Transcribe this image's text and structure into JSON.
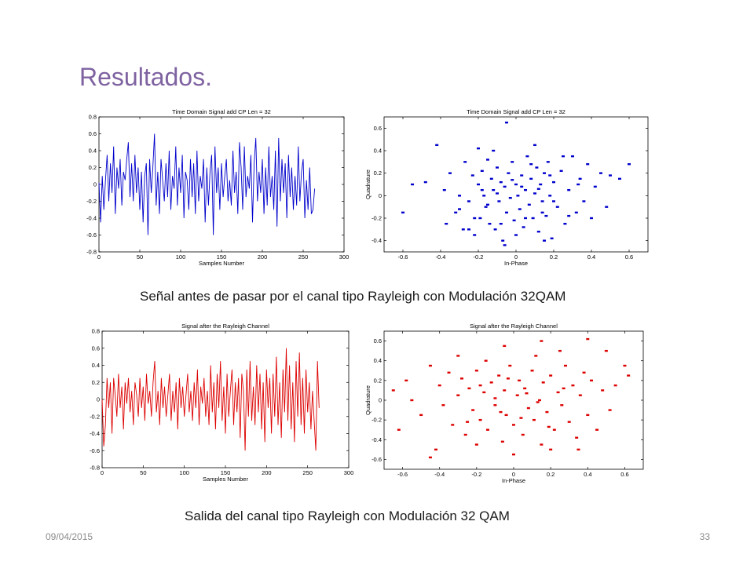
{
  "slide": {
    "title": "Resultados.",
    "caption_top": "Señal antes de pasar por el canal tipo Rayleigh con Modulación 32QAM",
    "caption_bottom": "Salida del canal tipo Rayleigh con Modulación 32 QAM",
    "date": "09/04/2015",
    "page_number": "33"
  },
  "chart_data": [
    {
      "id": "chart-time-before",
      "type": "line",
      "title": "Time Domain Signal add CP Len = 32",
      "xlabel": "Samples Number",
      "ylabel": "",
      "xlim": [
        0,
        300
      ],
      "ylim": [
        -0.8,
        0.8
      ],
      "xticks": [
        0,
        50,
        100,
        150,
        200,
        250,
        300
      ],
      "yticks": [
        -0.8,
        -0.6,
        -0.4,
        -0.2,
        0,
        0.2,
        0.4,
        0.6,
        0.8
      ],
      "color": "#0000cc",
      "grid": false,
      "x": [
        0,
        2,
        4,
        6,
        8,
        10,
        12,
        14,
        16,
        18,
        20,
        22,
        24,
        26,
        28,
        30,
        32,
        34,
        36,
        38,
        40,
        42,
        44,
        46,
        48,
        50,
        52,
        54,
        56,
        58,
        60,
        62,
        64,
        66,
        68,
        70,
        72,
        74,
        76,
        78,
        80,
        82,
        84,
        86,
        88,
        90,
        92,
        94,
        96,
        98,
        100,
        102,
        104,
        106,
        108,
        110,
        112,
        114,
        116,
        118,
        120,
        122,
        124,
        126,
        128,
        130,
        132,
        134,
        136,
        138,
        140,
        142,
        144,
        146,
        148,
        150,
        152,
        154,
        156,
        158,
        160,
        162,
        164,
        166,
        168,
        170,
        172,
        174,
        176,
        178,
        180,
        182,
        184,
        186,
        188,
        190,
        192,
        194,
        196,
        198,
        200,
        202,
        204,
        206,
        208,
        210,
        212,
        214,
        216,
        218,
        220,
        222,
        224,
        226,
        228,
        230,
        232,
        234,
        236,
        238,
        240,
        242,
        244,
        246,
        248,
        250,
        252,
        254,
        256,
        258,
        260,
        262,
        264
      ],
      "values": [
        0.02,
        -0.45,
        0.1,
        -0.3,
        0.05,
        0.35,
        -0.2,
        0.25,
        -0.1,
        0.45,
        -0.35,
        0.2,
        -0.05,
        0.3,
        -0.25,
        0.15,
        0.05,
        0.3,
        0.5,
        -0.15,
        0.25,
        -0.2,
        0.35,
        -0.1,
        0.2,
        -0.3,
        0.15,
        -0.45,
        0.1,
        0.25,
        -0.6,
        0.3,
        -0.1,
        0.2,
        0.6,
        -0.25,
        0.15,
        -0.35,
        0.3,
        0.05,
        -0.2,
        0.25,
        -0.15,
        0.4,
        -0.3,
        0.1,
        -0.05,
        0.45,
        -0.25,
        0.2,
        -0.1,
        0.35,
        -0.4,
        0.15,
        0.05,
        -0.3,
        0.3,
        -0.15,
        0.25,
        -0.35,
        0.4,
        -0.2,
        0.1,
        -0.05,
        0.3,
        -0.45,
        0.2,
        -0.25,
        0.15,
        0.35,
        -0.6,
        0.45,
        -0.1,
        0.2,
        -0.3,
        0.25,
        -0.15,
        0.1,
        0.3,
        -0.2,
        0.05,
        -0.25,
        0.4,
        -0.1,
        0.15,
        -0.35,
        0.5,
        0.2,
        -0.3,
        0.45,
        -0.15,
        0.1,
        -0.05,
        0.35,
        -0.45,
        0.25,
        0.55,
        -0.2,
        0.15,
        -0.1,
        0.3,
        -0.35,
        0.2,
        -0.25,
        0.45,
        -0.15,
        0.1,
        -0.3,
        0.4,
        -0.5,
        0.55,
        -0.2,
        0.3,
        -0.1,
        0.25,
        -0.4,
        0.35,
        -0.15,
        0.2,
        -0.3,
        0.1,
        -0.25,
        0.45,
        -0.2,
        0.15,
        0.3,
        -0.4,
        0.05,
        -0.3,
        0.2,
        -0.35,
        -0.3,
        -0.05
      ]
    },
    {
      "id": "chart-scatter-before",
      "type": "scatter",
      "title": "Time Domain Signal add CP Len = 32",
      "xlabel": "In-Phase",
      "ylabel": "Quadrature",
      "xlim": [
        -0.7,
        0.7
      ],
      "ylim": [
        -0.5,
        0.7
      ],
      "xticks": [
        -0.6,
        -0.4,
        -0.2,
        0,
        0.2,
        0.4,
        0.6
      ],
      "yticks": [
        -0.4,
        -0.2,
        0,
        0.2,
        0.4,
        0.6
      ],
      "color": "#0000cc",
      "grid": false,
      "points": [
        [
          -0.6,
          -0.15
        ],
        [
          -0.55,
          0.1
        ],
        [
          -0.48,
          0.12
        ],
        [
          -0.42,
          0.45
        ],
        [
          -0.38,
          0.05
        ],
        [
          -0.37,
          -0.25
        ],
        [
          -0.35,
          0.2
        ],
        [
          -0.32,
          -0.15
        ],
        [
          -0.3,
          0.0
        ],
        [
          -0.28,
          -0.3
        ],
        [
          -0.27,
          0.3
        ],
        [
          -0.25,
          -0.05
        ],
        [
          -0.23,
          0.18
        ],
        [
          -0.22,
          -0.35
        ],
        [
          -0.2,
          0.1
        ],
        [
          -0.19,
          -0.2
        ],
        [
          -0.18,
          0.22
        ],
        [
          -0.17,
          0.0
        ],
        [
          -0.16,
          -0.1
        ],
        [
          -0.15,
          0.32
        ],
        [
          -0.14,
          -0.25
        ],
        [
          -0.13,
          0.15
        ],
        [
          -0.12,
          0.05
        ],
        [
          -0.11,
          -0.3
        ],
        [
          -0.1,
          0.25
        ],
        [
          -0.09,
          -0.05
        ],
        [
          -0.08,
          0.12
        ],
        [
          -0.07,
          -0.4
        ],
        [
          -0.06,
          0.08
        ],
        [
          -0.05,
          -0.15
        ],
        [
          -0.04,
          0.2
        ],
        [
          -0.03,
          -0.02
        ],
        [
          -0.02,
          0.3
        ],
        [
          -0.01,
          -0.22
        ],
        [
          0.0,
          0.1
        ],
        [
          0.01,
          0.0
        ],
        [
          0.02,
          -0.12
        ],
        [
          0.03,
          0.18
        ],
        [
          0.04,
          -0.28
        ],
        [
          0.05,
          0.05
        ],
        [
          0.06,
          0.35
        ],
        [
          0.07,
          -0.08
        ],
        [
          0.08,
          0.15
        ],
        [
          0.09,
          -0.2
        ],
        [
          0.1,
          0.02
        ],
        [
          0.11,
          0.25
        ],
        [
          0.12,
          -0.32
        ],
        [
          0.13,
          0.1
        ],
        [
          0.14,
          -0.05
        ],
        [
          0.15,
          0.2
        ],
        [
          0.16,
          -0.18
        ],
        [
          0.17,
          0.3
        ],
        [
          0.18,
          0.0
        ],
        [
          0.19,
          -0.38
        ],
        [
          0.2,
          0.12
        ],
        [
          0.22,
          -0.1
        ],
        [
          0.24,
          0.22
        ],
        [
          0.26,
          -0.25
        ],
        [
          0.28,
          0.05
        ],
        [
          0.3,
          0.35
        ],
        [
          0.32,
          -0.15
        ],
        [
          0.34,
          0.15
        ],
        [
          0.36,
          -0.05
        ],
        [
          0.38,
          0.28
        ],
        [
          0.4,
          -0.2
        ],
        [
          0.42,
          0.08
        ],
        [
          0.45,
          0.2
        ],
        [
          0.48,
          -0.1
        ],
        [
          0.5,
          0.18
        ],
        [
          0.55,
          0.15
        ],
        [
          0.6,
          0.28
        ],
        [
          -0.05,
          0.65
        ],
        [
          -0.2,
          0.42
        ],
        [
          0.1,
          0.45
        ],
        [
          -0.25,
          -0.3
        ],
        [
          -0.06,
          -0.44
        ],
        [
          0.15,
          -0.4
        ],
        [
          0.0,
          -0.35
        ],
        [
          -0.12,
          0.4
        ],
        [
          0.25,
          0.35
        ],
        [
          -0.3,
          -0.12
        ],
        [
          0.05,
          -0.2
        ],
        [
          -0.15,
          -0.08
        ],
        [
          0.12,
          0.06
        ],
        [
          -0.02,
          0.14
        ],
        [
          0.2,
          -0.05
        ],
        [
          -0.08,
          -0.25
        ],
        [
          0.08,
          0.28
        ],
        [
          -0.18,
          0.05
        ],
        [
          0.28,
          -0.18
        ],
        [
          0.33,
          0.1
        ],
        [
          -0.22,
          -0.2
        ],
        [
          0.18,
          0.18
        ],
        [
          -0.1,
          0.02
        ],
        [
          0.03,
          0.08
        ],
        [
          0.14,
          -0.15
        ]
      ]
    },
    {
      "id": "chart-time-after",
      "type": "line",
      "title": "Signal after the Rayleigh Channel",
      "xlabel": "Samples Number",
      "ylabel": "",
      "xlim": [
        0,
        300
      ],
      "ylim": [
        -0.8,
        0.8
      ],
      "xticks": [
        0,
        50,
        100,
        150,
        200,
        250,
        300
      ],
      "yticks": [
        -0.8,
        -0.6,
        -0.4,
        -0.2,
        0,
        0.2,
        0.4,
        0.6,
        0.8
      ],
      "color": "#dd0000",
      "grid": false,
      "x": [
        0,
        2,
        4,
        6,
        8,
        10,
        12,
        14,
        16,
        18,
        20,
        22,
        24,
        26,
        28,
        30,
        32,
        34,
        36,
        38,
        40,
        42,
        44,
        46,
        48,
        50,
        52,
        54,
        56,
        58,
        60,
        62,
        64,
        66,
        68,
        70,
        72,
        74,
        76,
        78,
        80,
        82,
        84,
        86,
        88,
        90,
        92,
        94,
        96,
        98,
        100,
        102,
        104,
        106,
        108,
        110,
        112,
        114,
        116,
        118,
        120,
        122,
        124,
        126,
        128,
        130,
        132,
        134,
        136,
        138,
        140,
        142,
        144,
        146,
        148,
        150,
        152,
        154,
        156,
        158,
        160,
        162,
        164,
        166,
        168,
        170,
        172,
        174,
        176,
        178,
        180,
        182,
        184,
        186,
        188,
        190,
        192,
        194,
        196,
        198,
        200,
        202,
        204,
        206,
        208,
        210,
        212,
        214,
        216,
        218,
        220,
        222,
        224,
        226,
        228,
        230,
        232,
        234,
        236,
        238,
        240,
        242,
        244,
        246,
        248,
        250,
        252,
        254,
        256,
        258,
        260,
        262,
        264
      ],
      "values": [
        0.0,
        -0.55,
        -0.3,
        0.25,
        -0.1,
        0.2,
        -0.4,
        0.25,
        0.05,
        -0.2,
        0.3,
        -0.1,
        0.15,
        -0.35,
        0.2,
        -0.05,
        0.25,
        -0.15,
        0.1,
        -0.3,
        0.2,
        0.05,
        -0.2,
        0.25,
        -0.1,
        0.15,
        -0.25,
        0.3,
        -0.05,
        0.1,
        -0.2,
        0.2,
        0.45,
        -0.15,
        0.1,
        -0.3,
        0.25,
        -0.1,
        0.15,
        -0.2,
        0.05,
        0.3,
        -0.25,
        0.1,
        -0.15,
        0.2,
        -0.35,
        0.25,
        -0.1,
        0.15,
        -0.2,
        0.05,
        0.3,
        -0.15,
        0.1,
        -0.25,
        0.2,
        -0.1,
        0.35,
        -0.3,
        0.15,
        -0.05,
        0.25,
        -0.2,
        0.1,
        -0.3,
        0.4,
        -0.15,
        0.2,
        -0.35,
        0.3,
        -0.1,
        0.45,
        -0.25,
        0.15,
        -0.4,
        0.3,
        -0.2,
        0.1,
        0.35,
        -0.3,
        0.2,
        -0.15,
        0.25,
        -0.45,
        0.3,
        0.1,
        -0.6,
        0.35,
        -0.2,
        0.45,
        -0.25,
        0.15,
        -0.3,
        0.4,
        -0.15,
        0.3,
        -0.35,
        0.2,
        -0.5,
        0.35,
        -0.1,
        0.25,
        -0.4,
        0.3,
        -0.2,
        0.5,
        -0.3,
        0.2,
        -0.45,
        0.35,
        -0.15,
        0.6,
        -0.25,
        0.4,
        -0.35,
        0.2,
        -0.5,
        0.45,
        -0.2,
        0.55,
        -0.3,
        0.25,
        -0.4,
        0.35,
        -0.15,
        0.2,
        -0.35,
        0.1,
        -0.25,
        -0.6,
        0.45,
        -0.1
      ]
    },
    {
      "id": "chart-scatter-after",
      "type": "scatter",
      "title": "Signal after the Rayleigh Channel",
      "xlabel": "In-Phase",
      "ylabel": "Quadrature",
      "xlim": [
        -0.7,
        0.7
      ],
      "ylim": [
        -0.7,
        0.7
      ],
      "xticks": [
        -0.6,
        -0.4,
        -0.2,
        0,
        0.2,
        0.4,
        0.6
      ],
      "yticks": [
        -0.6,
        -0.4,
        -0.2,
        0,
        0.2,
        0.4,
        0.6
      ],
      "color": "#dd0000",
      "grid": false,
      "points": [
        [
          -0.65,
          0.1
        ],
        [
          -0.62,
          -0.3
        ],
        [
          -0.58,
          0.2
        ],
        [
          -0.55,
          0.0
        ],
        [
          -0.5,
          -0.15
        ],
        [
          -0.45,
          0.35
        ],
        [
          -0.42,
          -0.5
        ],
        [
          -0.4,
          0.15
        ],
        [
          -0.38,
          -0.05
        ],
        [
          -0.35,
          0.28
        ],
        [
          -0.33,
          -0.25
        ],
        [
          -0.3,
          0.05
        ],
        [
          -0.28,
          0.22
        ],
        [
          -0.26,
          -0.35
        ],
        [
          -0.24,
          0.12
        ],
        [
          -0.22,
          -0.1
        ],
        [
          -0.2,
          0.3
        ],
        [
          -0.18,
          -0.2
        ],
        [
          -0.16,
          0.08
        ],
        [
          -0.15,
          0.4
        ],
        [
          -0.14,
          -0.3
        ],
        [
          -0.12,
          0.18
        ],
        [
          -0.1,
          -0.05
        ],
        [
          -0.08,
          0.25
        ],
        [
          -0.06,
          -0.42
        ],
        [
          -0.05,
          0.1
        ],
        [
          -0.04,
          -0.15
        ],
        [
          -0.02,
          0.35
        ],
        [
          0.0,
          -0.25
        ],
        [
          0.02,
          0.05
        ],
        [
          0.03,
          0.2
        ],
        [
          0.05,
          -0.35
        ],
        [
          0.06,
          0.12
        ],
        [
          0.08,
          -0.08
        ],
        [
          0.1,
          0.3
        ],
        [
          0.11,
          -0.2
        ],
        [
          0.12,
          0.45
        ],
        [
          0.14,
          0.0
        ],
        [
          0.15,
          -0.45
        ],
        [
          0.16,
          0.18
        ],
        [
          0.18,
          -0.12
        ],
        [
          0.2,
          0.25
        ],
        [
          0.22,
          -0.3
        ],
        [
          0.24,
          0.08
        ],
        [
          0.26,
          -0.05
        ],
        [
          0.28,
          0.35
        ],
        [
          0.3,
          -0.22
        ],
        [
          0.32,
          0.15
        ],
        [
          0.34,
          -0.38
        ],
        [
          0.36,
          0.05
        ],
        [
          0.38,
          0.28
        ],
        [
          0.4,
          -0.15
        ],
        [
          0.42,
          0.2
        ],
        [
          0.45,
          -0.3
        ],
        [
          0.48,
          0.1
        ],
        [
          0.5,
          0.5
        ],
        [
          0.52,
          -0.1
        ],
        [
          0.55,
          0.15
        ],
        [
          0.6,
          0.35
        ],
        [
          0.62,
          0.25
        ],
        [
          0.4,
          0.62
        ],
        [
          0.15,
          0.6
        ],
        [
          -0.05,
          0.55
        ],
        [
          0.25,
          0.5
        ],
        [
          -0.3,
          0.45
        ],
        [
          -0.45,
          -0.58
        ],
        [
          0.0,
          -0.55
        ],
        [
          0.2,
          -0.5
        ],
        [
          -0.2,
          -0.45
        ],
        [
          0.35,
          -0.5
        ],
        [
          -0.1,
          0.02
        ],
        [
          0.07,
          0.07
        ],
        [
          -0.07,
          -0.12
        ],
        [
          0.13,
          -0.02
        ],
        [
          -0.25,
          -0.22
        ],
        [
          0.27,
          0.12
        ],
        [
          -0.18,
          0.15
        ],
        [
          0.19,
          -0.27
        ],
        [
          0.04,
          -0.18
        ],
        [
          -0.03,
          0.22
        ]
      ]
    }
  ]
}
